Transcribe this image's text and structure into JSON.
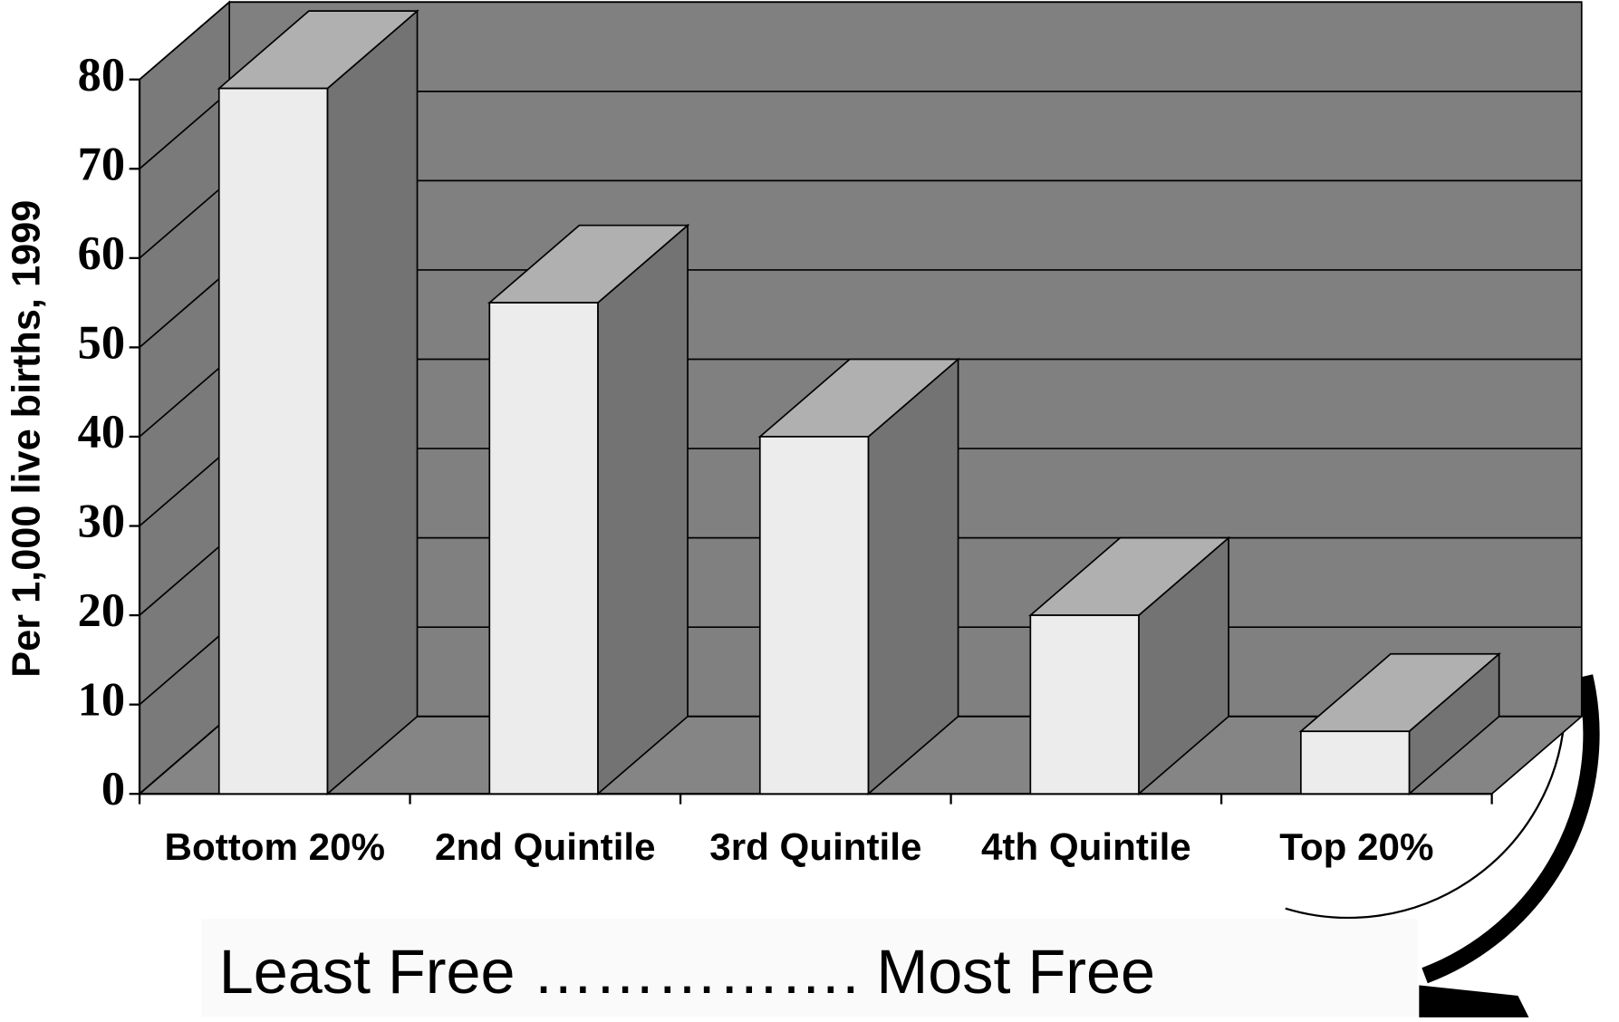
{
  "chart_data": {
    "type": "bar3d",
    "y_label": "Per 1,000 live births, 1999",
    "categories": [
      "Bottom 20%",
      "2nd Quintile",
      "3rd Quintile",
      "4th Quintile",
      "Top 20%"
    ],
    "values": [
      79,
      55,
      40,
      20,
      7
    ],
    "color": "#ececec",
    "ylim": [
      0,
      80
    ],
    "yticks": [
      0,
      10,
      20,
      30,
      40,
      50,
      60,
      70,
      80
    ],
    "grid": true,
    "annotation": "Least Free ……………. Most Free"
  }
}
